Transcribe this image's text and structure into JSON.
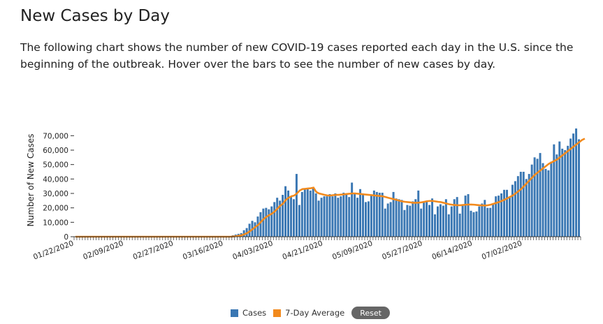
{
  "page": {
    "title": "New Cases by Day",
    "description": "The following chart shows the number of new COVID-19 cases reported each day in the U.S. since the beginning of the outbreak. Hover over the bars to see the number of new cases by day."
  },
  "legend": {
    "cases_label": "Cases",
    "avg_label": "7-Day Average",
    "reset_label": "Reset"
  },
  "colors": {
    "bar": "#3a77b3",
    "line": "#f28a1d",
    "axis": "#333333"
  },
  "chart_data": {
    "type": "bar",
    "ylabel": "Number of New Cases",
    "xlabel": "",
    "ylim": [
      0,
      75000
    ],
    "yticks": [
      0,
      10000,
      20000,
      30000,
      40000,
      50000,
      60000,
      70000
    ],
    "ytick_labels": [
      "0",
      "10,000",
      "20,000",
      "30,000",
      "40,000",
      "50,000",
      "60,000",
      "70,000"
    ],
    "x_start": "01/22/2020",
    "x_tick_labels": [
      "01/22/2020",
      "02/09/2020",
      "02/27/2020",
      "03/16/2020",
      "04/03/2020",
      "04/21/2020",
      "05/09/2020",
      "05/27/2020",
      "06/14/2020",
      "07/02/2020"
    ],
    "series": [
      {
        "name": "Cases",
        "type": "bar",
        "values": [
          0,
          0,
          0,
          0,
          0,
          0,
          0,
          0,
          0,
          0,
          0,
          0,
          0,
          0,
          0,
          0,
          0,
          0,
          0,
          0,
          0,
          0,
          0,
          0,
          0,
          0,
          0,
          0,
          0,
          0,
          0,
          0,
          0,
          0,
          0,
          0,
          0,
          0,
          0,
          0,
          0,
          0,
          0,
          0,
          0,
          0,
          0,
          0,
          0,
          0,
          0,
          0,
          0,
          0,
          0,
          0,
          0,
          1000,
          1500,
          2000,
          2500,
          4500,
          6000,
          9000,
          11000,
          10000,
          14000,
          17000,
          19500,
          20000,
          19000,
          21000,
          24000,
          27000,
          25000,
          29000,
          35000,
          32000,
          28000,
          26000,
          43500,
          22000,
          31000,
          33000,
          33000,
          32000,
          34000,
          30000,
          25000,
          27000,
          28000,
          28000,
          29500,
          28000,
          30000,
          27000,
          28000,
          30500,
          30000,
          27500,
          37500,
          30000,
          27000,
          33000,
          30000,
          24000,
          24500,
          29000,
          32000,
          31000,
          30500,
          30500,
          19500,
          23000,
          24000,
          31000,
          26500,
          26000,
          25500,
          18500,
          22000,
          21500,
          24500,
          26000,
          32000,
          19500,
          24000,
          24000,
          22000,
          26500,
          15500,
          21000,
          22500,
          21500,
          26000,
          15500,
          21000,
          26000,
          27500,
          16000,
          21500,
          28500,
          29500,
          18000,
          17000,
          17500,
          21000,
          23000,
          25500,
          20000,
          20000,
          22500,
          28000,
          28500,
          30000,
          32500,
          32500,
          27500,
          36000,
          38500,
          42000,
          45000,
          45000,
          40000,
          43500,
          50000,
          55000,
          54000,
          58000,
          51000,
          47000,
          46000,
          52000,
          64000,
          57000,
          66000,
          61000,
          60000,
          63000,
          68000,
          71500,
          75000,
          67500
        ]
      },
      {
        "name": "7-Day Average",
        "type": "line",
        "values": [
          0,
          0,
          0,
          0,
          0,
          0,
          0,
          0,
          0,
          0,
          0,
          0,
          0,
          0,
          0,
          0,
          0,
          0,
          0,
          0,
          0,
          0,
          0,
          0,
          0,
          0,
          0,
          0,
          0,
          0,
          0,
          0,
          0,
          0,
          0,
          0,
          0,
          0,
          0,
          0,
          0,
          0,
          0,
          0,
          0,
          0,
          0,
          0,
          0,
          0,
          0,
          0,
          0,
          0,
          0,
          0,
          0,
          143,
          357,
          643,
          1000,
          1643,
          2500,
          3786,
          5214,
          6786,
          8143,
          10214,
          12286,
          13786,
          15000,
          16000,
          17500,
          19500,
          21500,
          23000,
          25500,
          27000,
          28000,
          28500,
          30000,
          32000,
          33000,
          33200,
          33400,
          33600,
          34000,
          31000,
          30000,
          29500,
          29000,
          28600,
          28500,
          28800,
          29000,
          29000,
          29200,
          29400,
          29600,
          29800,
          30000,
          30000,
          29800,
          29600,
          29400,
          29200,
          29000,
          28800,
          28600,
          28400,
          28200,
          28000,
          27500,
          27000,
          26500,
          26000,
          25500,
          25000,
          24500,
          24200,
          24000,
          23800,
          23500,
          23500,
          23600,
          23800,
          24200,
          24600,
          24800,
          24800,
          24500,
          24200,
          24000,
          23500,
          23000,
          22500,
          22200,
          22000,
          21800,
          21800,
          22000,
          22200,
          22300,
          22300,
          22200,
          22000,
          21800,
          21700,
          21600,
          21800,
          22200,
          22800,
          23400,
          24000,
          24800,
          25600,
          26600,
          27600,
          28600,
          30000,
          31500,
          33000,
          35000,
          37000,
          39000,
          41000,
          43000,
          44500,
          46000,
          47500,
          49000,
          50500,
          51500,
          52500,
          53500,
          55000,
          56500,
          58000,
          59500,
          61000,
          62500,
          64000,
          65500,
          67000,
          68000
        ]
      }
    ],
    "grid": false,
    "legend_position": "bottom"
  }
}
